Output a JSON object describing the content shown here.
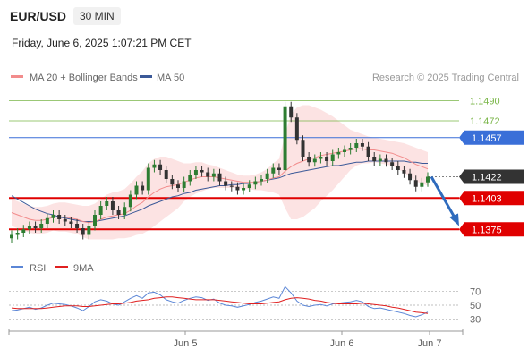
{
  "header": {
    "symbol": "EUR/USD",
    "timeframe": "30 MIN",
    "datetime": "Friday, June 6, 2025 1:07:21 PM CET"
  },
  "legend": {
    "ma20": "MA 20 + Bollinger Bands",
    "ma50": "MA 50",
    "credit": "Research © 2025 Trading Central",
    "rsi": "RSI",
    "rsi_ma": "9MA"
  },
  "colors": {
    "green_level": "#7ab648",
    "blue_level": "#3a6fd8",
    "red_level": "#e00000",
    "last_price": "#333333",
    "ma20": "#f28c8c",
    "ma50": "#3b5998",
    "bollinger": "#fbd9d9",
    "candle": "#2e7d32",
    "rsi": "#5b86d6",
    "rsi_ma": "#e02020",
    "arrow": "#2f6bbd"
  },
  "chart_data": [
    {
      "type": "line",
      "title": "",
      "ylim": [
        1.136,
        1.15
      ],
      "x_ticks": [
        "Jun 5",
        "Jun 6",
        "Jun 7"
      ],
      "levels": [
        {
          "value": 1.149,
          "label": "1.1490",
          "kind": "resistance",
          "style": "green"
        },
        {
          "value": 1.1472,
          "label": "1.1472",
          "kind": "resistance",
          "style": "green"
        },
        {
          "value": 1.1457,
          "label": "1.1457",
          "kind": "pivot",
          "style": "blue"
        },
        {
          "value": 1.1422,
          "label": "1.1422",
          "kind": "last",
          "style": "dark"
        },
        {
          "value": 1.1403,
          "label": "1.1403",
          "kind": "support",
          "style": "red"
        },
        {
          "value": 1.1375,
          "label": "1.1375",
          "kind": "support",
          "style": "red"
        }
      ],
      "price_close": [
        1.137,
        1.1372,
        1.1375,
        1.1378,
        1.1376,
        1.138,
        1.1385,
        1.1388,
        1.1384,
        1.1382,
        1.138,
        1.1376,
        1.137,
        1.1378,
        1.1388,
        1.1396,
        1.14,
        1.1392,
        1.1388,
        1.1395,
        1.1406,
        1.1414,
        1.141,
        1.143,
        1.1433,
        1.1428,
        1.142,
        1.1415,
        1.1412,
        1.1418,
        1.1424,
        1.1428,
        1.1426,
        1.1422,
        1.1425,
        1.1418,
        1.1414,
        1.1413,
        1.141,
        1.1412,
        1.1415,
        1.1418,
        1.142,
        1.1425,
        1.143,
        1.1428,
        1.1485,
        1.1475,
        1.1455,
        1.144,
        1.1435,
        1.1438,
        1.144,
        1.1436,
        1.1442,
        1.1444,
        1.1446,
        1.1448,
        1.1452,
        1.1449,
        1.144,
        1.1436,
        1.1438,
        1.1435,
        1.1432,
        1.1428,
        1.1425,
        1.1419,
        1.1413,
        1.1417,
        1.1422
      ],
      "ma20": [
        1.139,
        1.1388,
        1.1386,
        1.1384,
        1.1383,
        1.1383,
        1.1384,
        1.1386,
        1.1386,
        1.1386,
        1.1385,
        1.1384,
        1.1382,
        1.1381,
        1.1382,
        1.1384,
        1.1386,
        1.1387,
        1.1388,
        1.1389,
        1.1392,
        1.1396,
        1.1399,
        1.1404,
        1.1408,
        1.1411,
        1.1413,
        1.1414,
        1.1415,
        1.1417,
        1.1419,
        1.1421,
        1.1422,
        1.1422,
        1.1422,
        1.1421,
        1.142,
        1.1419,
        1.1418,
        1.1417,
        1.1417,
        1.1417,
        1.1418,
        1.1419,
        1.1421,
        1.1422,
        1.1427,
        1.1431,
        1.1434,
        1.1436,
        1.1438,
        1.1439,
        1.1441,
        1.1442,
        1.1443,
        1.1444,
        1.1445,
        1.1446,
        1.1447,
        1.1447,
        1.1446,
        1.1446,
        1.1445,
        1.1444,
        1.1443,
        1.1441,
        1.1439,
        1.1436,
        1.1433,
        1.1431,
        1.1429
      ],
      "ma50": [
        1.1405,
        1.1402,
        1.1399,
        1.1396,
        1.1393,
        1.1391,
        1.1389,
        1.1388,
        1.1386,
        1.1385,
        1.1384,
        1.1383,
        1.1382,
        1.1382,
        1.1382,
        1.1383,
        1.1384,
        1.1385,
        1.1386,
        1.1387,
        1.1389,
        1.1391,
        1.1393,
        1.1396,
        1.1398,
        1.14,
        1.1402,
        1.1404,
        1.1405,
        1.1407,
        1.1408,
        1.141,
        1.1411,
        1.1412,
        1.1413,
        1.1414,
        1.1414,
        1.1415,
        1.1415,
        1.1416,
        1.1416,
        1.1417,
        1.1418,
        1.1419,
        1.142,
        1.1421,
        1.1423,
        1.1425,
        1.1426,
        1.1427,
        1.1428,
        1.1429,
        1.143,
        1.1431,
        1.1432,
        1.1432,
        1.1433,
        1.1434,
        1.1435,
        1.1435,
        1.1436,
        1.1436,
        1.1436,
        1.1436,
        1.1436,
        1.1436,
        1.1436,
        1.1435,
        1.1435,
        1.1434,
        1.1434
      ],
      "bb_upper": [
        1.1402,
        1.14,
        1.1398,
        1.1396,
        1.1395,
        1.1395,
        1.1396,
        1.1398,
        1.1399,
        1.1399,
        1.1398,
        1.1397,
        1.1396,
        1.1396,
        1.1398,
        1.1402,
        1.1406,
        1.1408,
        1.1409,
        1.1411,
        1.1416,
        1.1422,
        1.1427,
        1.1434,
        1.1438,
        1.144,
        1.144,
        1.1438,
        1.1436,
        1.1434,
        1.1434,
        1.1435,
        1.1435,
        1.1433,
        1.1432,
        1.143,
        1.1428,
        1.1426,
        1.1424,
        1.1423,
        1.1423,
        1.1424,
        1.1426,
        1.1429,
        1.1434,
        1.1438,
        1.146,
        1.1478,
        1.1484,
        1.1486,
        1.1486,
        1.1484,
        1.1482,
        1.1479,
        1.1476,
        1.1472,
        1.1468,
        1.1464,
        1.1462,
        1.146,
        1.1458,
        1.1457,
        1.1456,
        1.1455,
        1.1454,
        1.1453,
        1.1452,
        1.145,
        1.1448,
        1.1446,
        1.1444
      ],
      "bb_lower": [
        1.1378,
        1.1376,
        1.1374,
        1.1372,
        1.1371,
        1.1371,
        1.1372,
        1.1374,
        1.1373,
        1.1373,
        1.1372,
        1.1371,
        1.1368,
        1.1366,
        1.1366,
        1.1366,
        1.1366,
        1.1366,
        1.1367,
        1.1367,
        1.1368,
        1.137,
        1.1371,
        1.1374,
        1.1378,
        1.1382,
        1.1386,
        1.139,
        1.1394,
        1.14,
        1.1404,
        1.1407,
        1.1409,
        1.1411,
        1.1412,
        1.1412,
        1.1412,
        1.1412,
        1.1412,
        1.1411,
        1.1411,
        1.141,
        1.141,
        1.1409,
        1.1408,
        1.1406,
        1.1394,
        1.1384,
        1.1384,
        1.1386,
        1.139,
        1.1394,
        1.14,
        1.1405,
        1.141,
        1.1416,
        1.1422,
        1.1428,
        1.1432,
        1.1434,
        1.1434,
        1.1435,
        1.1434,
        1.1433,
        1.1432,
        1.1429,
        1.1426,
        1.1422,
        1.1418,
        1.1416,
        1.1414
      ],
      "projection": {
        "from": 1.1422,
        "to": 1.1378
      }
    },
    {
      "type": "line",
      "title": "",
      "ylim": [
        20,
        80
      ],
      "y_ticks": [
        70,
        50,
        30
      ],
      "rsi": [
        42,
        43,
        45,
        47,
        44,
        46,
        50,
        53,
        52,
        51,
        49,
        46,
        42,
        48,
        55,
        58,
        56,
        52,
        50,
        55,
        60,
        64,
        60,
        68,
        69,
        65,
        58,
        55,
        53,
        57,
        60,
        62,
        61,
        57,
        59,
        53,
        50,
        49,
        47,
        49,
        51,
        54,
        56,
        59,
        62,
        60,
        77,
        68,
        56,
        50,
        48,
        50,
        51,
        49,
        52,
        53,
        54,
        55,
        57,
        55,
        48,
        45,
        46,
        44,
        42,
        40,
        38,
        35,
        33,
        36,
        40
      ],
      "rsi_ma": [
        46,
        45,
        45,
        45,
        45,
        45,
        46,
        47,
        48,
        49,
        49,
        49,
        48,
        48,
        49,
        50,
        51,
        52,
        52,
        53,
        54,
        56,
        57,
        58,
        60,
        61,
        62,
        62,
        61,
        60,
        59,
        58,
        58,
        58,
        58,
        57,
        56,
        55,
        54,
        53,
        52,
        52,
        52,
        53,
        54,
        55,
        58,
        60,
        61,
        60,
        59,
        57,
        56,
        54,
        53,
        52,
        52,
        52,
        52,
        53,
        52,
        51,
        50,
        49,
        47,
        46,
        44,
        42,
        40,
        39,
        38
      ]
    }
  ]
}
